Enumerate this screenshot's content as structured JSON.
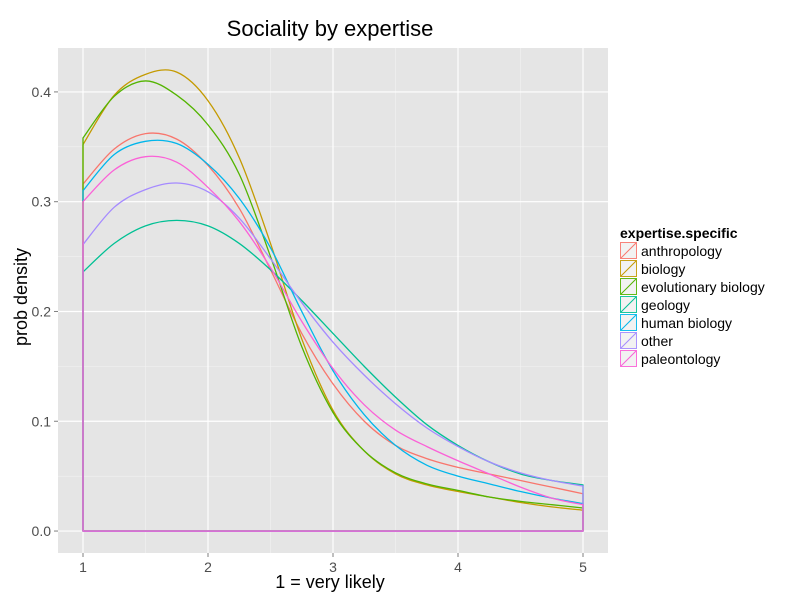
{
  "chart_data": {
    "type": "line",
    "title": "Sociality  by expertise",
    "xlabel": "1 = very likely",
    "ylabel": "prob density",
    "xlim": [
      0.8,
      5.2
    ],
    "ylim": [
      -0.02,
      0.44
    ],
    "x_ticks": [
      1,
      2,
      3,
      4,
      5
    ],
    "x_tick_labels": [
      "1",
      "2",
      "3",
      "4",
      "5"
    ],
    "y_ticks": [
      0,
      0.1,
      0.2,
      0.3,
      0.4
    ],
    "y_tick_labels": [
      "0.0",
      "0.1",
      "0.2",
      "0.3",
      "0.4"
    ],
    "grid": true,
    "panel_background": "#e5e5e5",
    "legend": {
      "title": "expertise.specific",
      "placement": "right"
    },
    "x": [
      1,
      1.25,
      1.5,
      1.75,
      2,
      2.25,
      2.5,
      2.75,
      3,
      3.25,
      3.5,
      3.75,
      4,
      4.25,
      4.5,
      4.75,
      5
    ],
    "series": [
      {
        "name": "anthropology",
        "color": "#F8766D",
        "values": [
          0.316,
          0.348,
          0.362,
          0.357,
          0.333,
          0.294,
          0.238,
          0.18,
          0.134,
          0.1,
          0.078,
          0.066,
          0.058,
          0.052,
          0.046,
          0.04,
          0.034
        ]
      },
      {
        "name": "biology",
        "color": "#C49A00",
        "values": [
          0.352,
          0.397,
          0.416,
          0.418,
          0.392,
          0.34,
          0.262,
          0.175,
          0.11,
          0.073,
          0.052,
          0.042,
          0.036,
          0.031,
          0.026,
          0.022,
          0.019
        ]
      },
      {
        "name": "evolutionary biology",
        "color": "#53B400",
        "values": [
          0.358,
          0.396,
          0.41,
          0.397,
          0.37,
          0.325,
          0.25,
          0.168,
          0.108,
          0.073,
          0.053,
          0.043,
          0.037,
          0.031,
          0.027,
          0.024,
          0.021
        ]
      },
      {
        "name": "geology",
        "color": "#00C094",
        "values": [
          0.236,
          0.262,
          0.278,
          0.283,
          0.278,
          0.262,
          0.238,
          0.21,
          0.18,
          0.15,
          0.122,
          0.097,
          0.078,
          0.063,
          0.052,
          0.046,
          0.042
        ]
      },
      {
        "name": "human biology",
        "color": "#00B6EB",
        "values": [
          0.31,
          0.343,
          0.355,
          0.353,
          0.334,
          0.303,
          0.258,
          0.2,
          0.146,
          0.106,
          0.078,
          0.06,
          0.05,
          0.043,
          0.036,
          0.03,
          0.025
        ]
      },
      {
        "name": "other",
        "color": "#A58AFF",
        "values": [
          0.261,
          0.295,
          0.311,
          0.317,
          0.309,
          0.285,
          0.248,
          0.208,
          0.172,
          0.142,
          0.116,
          0.094,
          0.077,
          0.063,
          0.053,
          0.046,
          0.041
        ]
      },
      {
        "name": "paleontology",
        "color": "#FB61D7",
        "values": [
          0.3,
          0.329,
          0.341,
          0.336,
          0.313,
          0.282,
          0.24,
          0.191,
          0.148,
          0.115,
          0.092,
          0.077,
          0.064,
          0.052,
          0.04,
          0.03,
          0.024
        ]
      }
    ]
  }
}
